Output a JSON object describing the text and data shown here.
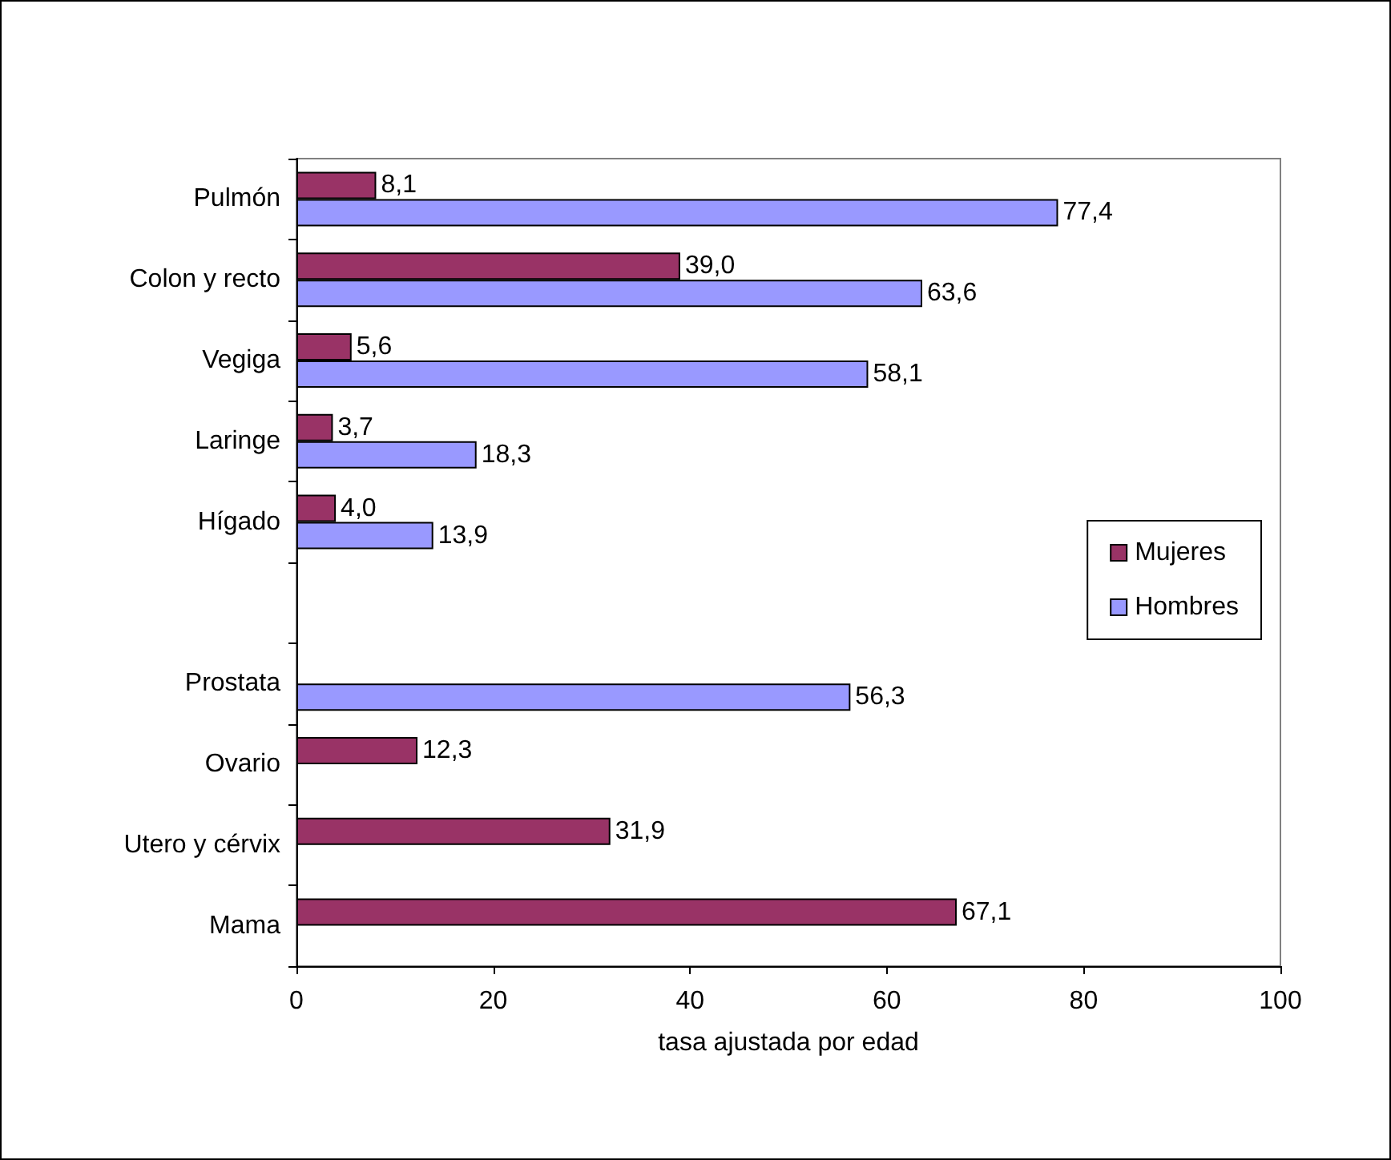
{
  "chart_data": {
    "type": "bar",
    "orientation": "horizontal",
    "xlabel": "tasa ajustada por edad",
    "categories": [
      "Pulmón",
      "Colon y recto",
      "Vegiga",
      "Laringe",
      "Hígado",
      null,
      "Prostata",
      "Ovario",
      "Utero y cérvix",
      "Mama"
    ],
    "series": [
      {
        "name": "Mujeres",
        "color": "#993366",
        "values": [
          8.1,
          39.0,
          5.6,
          3.7,
          4.0,
          null,
          null,
          12.3,
          31.9,
          67.1
        ],
        "value_labels": [
          "8,1",
          "39,0",
          "5,6",
          "3,7",
          "4,0",
          null,
          null,
          "12,3",
          "31,9",
          "67,1"
        ]
      },
      {
        "name": "Hombres",
        "color": "#9999ff",
        "values": [
          77.4,
          63.6,
          58.1,
          18.3,
          13.9,
          null,
          56.3,
          null,
          null,
          null
        ],
        "value_labels": [
          "77,4",
          "63,6",
          "58,1",
          "18,3",
          "13,9",
          null,
          "56,3",
          null,
          null,
          null
        ]
      }
    ],
    "xlim": [
      0,
      100
    ],
    "xticks": [
      0,
      20,
      40,
      60,
      80,
      100
    ],
    "grid": false,
    "legend": "right"
  }
}
